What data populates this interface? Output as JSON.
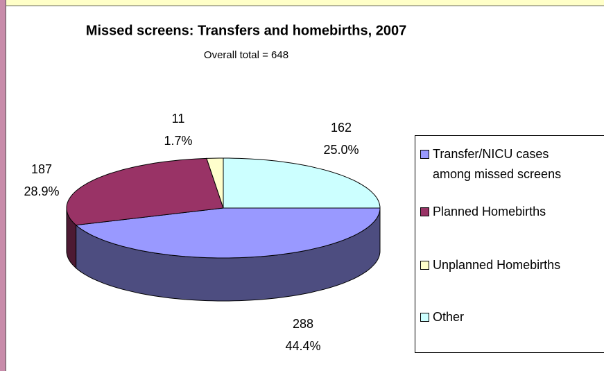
{
  "chart_data": {
    "type": "pie",
    "title": "Missed screens: Transfers and homebirths, 2007",
    "subtitle": "Overall total = 648",
    "categories": [
      "Transfer/NICU cases among missed screens",
      "Planned Homebirths",
      "Unplanned Homebirths",
      "Other"
    ],
    "values": [
      288,
      187,
      11,
      162
    ],
    "percent_labels": [
      "44.4%",
      "28.9%",
      "1.7%",
      "25.0%"
    ],
    "colors": [
      "#9999ff",
      "#993366",
      "#ffffcc",
      "#ccffff"
    ],
    "side_colors": [
      "#4d4d80",
      "#4d1a33",
      "#80806a",
      "#6a8080"
    ],
    "legend": "right"
  }
}
